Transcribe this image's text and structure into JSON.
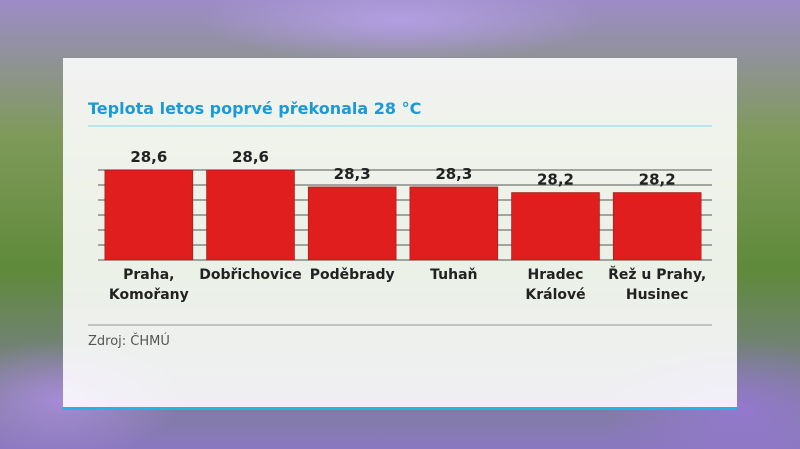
{
  "chart_data": {
    "type": "bar",
    "title": "Teplota letos poprvé překonala 28 °C",
    "categories": [
      "Praha, Komořany",
      "Dobřichovice",
      "Poděbrady",
      "Tuhaň",
      "Hradec Králové",
      "Řež u Prahy, Husinec"
    ],
    "values": [
      28.6,
      28.6,
      28.3,
      28.3,
      28.2,
      28.2
    ],
    "value_labels": [
      "28,6",
      "28,6",
      "28,3",
      "28,3",
      "28,2",
      "28,2"
    ],
    "color": "#e01e1e",
    "ylim": [
      27,
      28.6
    ],
    "source": "Zdroj: ČHMÚ"
  }
}
